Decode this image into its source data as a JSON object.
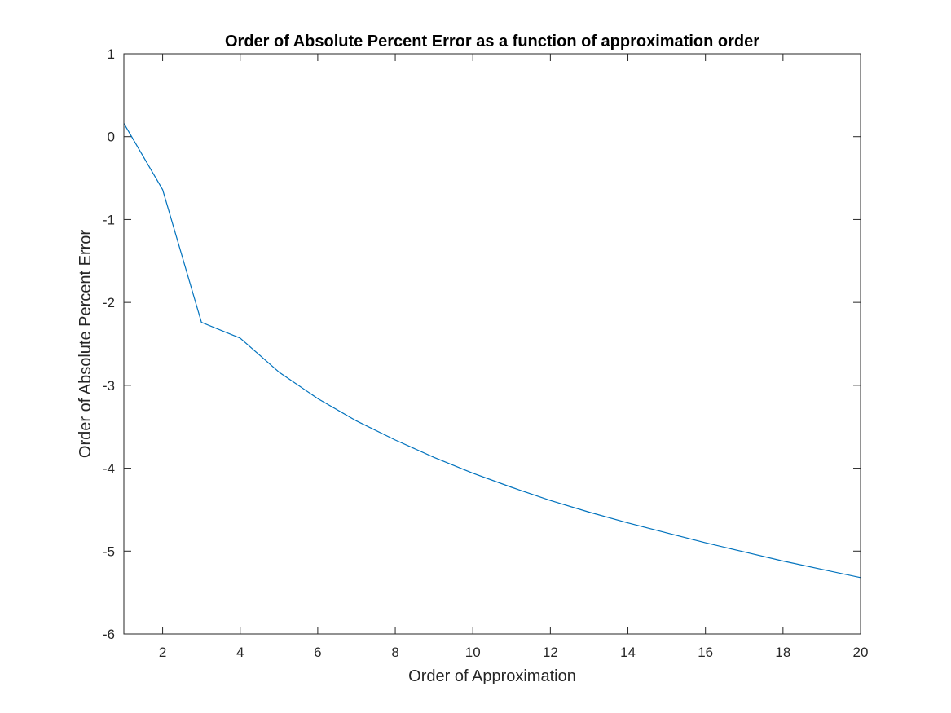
{
  "chart_data": {
    "type": "line",
    "title": "Order of Absolute Percent Error as a function of approximation order",
    "xlabel": "Order of Approximation",
    "ylabel": "Order of Absolute Percent Error",
    "xlim": [
      1,
      20
    ],
    "ylim": [
      -6,
      1
    ],
    "xticks": [
      2,
      4,
      6,
      8,
      10,
      12,
      14,
      16,
      18,
      20
    ],
    "yticks": [
      -6,
      -5,
      -4,
      -3,
      -2,
      -1,
      0,
      1
    ],
    "grid": false,
    "line_color": "#0072BD",
    "series": [
      {
        "x": [
          1,
          2,
          3,
          4,
          5,
          6,
          7,
          8,
          9,
          10,
          11,
          12,
          13,
          14,
          15,
          16,
          17,
          18,
          19,
          20
        ],
        "values": [
          0.16,
          -0.64,
          -2.24,
          -2.43,
          -2.84,
          -3.16,
          -3.43,
          -3.66,
          -3.87,
          -4.06,
          -4.23,
          -4.39,
          -4.53,
          -4.66,
          -4.78,
          -4.9,
          -5.01,
          -5.12,
          -5.22,
          -5.32
        ]
      }
    ]
  }
}
